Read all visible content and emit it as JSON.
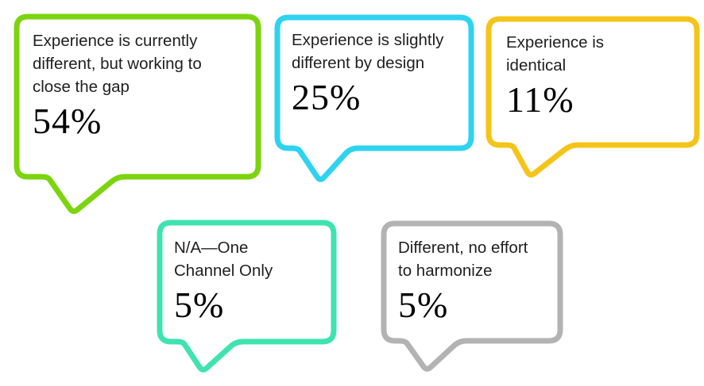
{
  "chart_data": {
    "type": "pie",
    "variant": "speech-bubble-percentage-callout-infographic",
    "title": "",
    "unit": "%",
    "categories": [
      "Experience is currently different, but working to close the gap",
      "Experience is slightly different by design",
      "Experience is identical",
      "N/A—One Channel Only",
      "Different, no effort to harmonize"
    ],
    "values": [
      54,
      25,
      11,
      5,
      5
    ],
    "legend": "none",
    "axes": "none",
    "bubbles": [
      {
        "label": "Experience is currently different, but working to close the gap",
        "label_lines": [
          "Experience is currently",
          "different, but working to",
          "close the gap"
        ],
        "value": 54,
        "value_label": "54%",
        "color": "#7CD40E"
      },
      {
        "label": "Experience is slightly different by design",
        "label_lines": [
          "Experience is slightly",
          "different by design"
        ],
        "value": 25,
        "value_label": "25%",
        "color": "#2ED3F0"
      },
      {
        "label": "Experience is identical",
        "label_lines": [
          "Experience is",
          "identical"
        ],
        "value": 11,
        "value_label": "11%",
        "color": "#F5C418"
      },
      {
        "label": "N/A—One Channel Only",
        "label_lines": [
          "N/A—One",
          "Channel Only"
        ],
        "value": 5,
        "value_label": "5%",
        "color": "#3FE3B0"
      },
      {
        "label": "Different, no effort to harmonize",
        "label_lines": [
          "Different, no effort",
          "to harmonize"
        ],
        "value": 5,
        "value_label": "5%",
        "color": "#B3B3B3"
      }
    ]
  },
  "colors": {
    "background": "#FFFFFF",
    "label_text": "#1F1F1F",
    "value_text": "#000000"
  }
}
